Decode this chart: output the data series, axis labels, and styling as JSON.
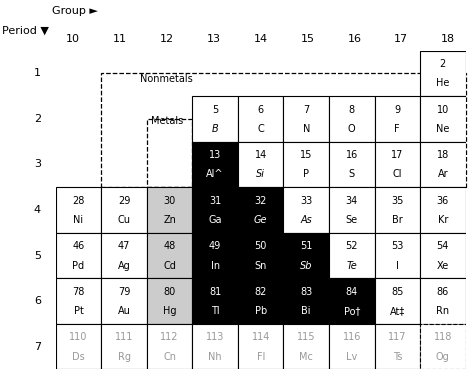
{
  "elements": [
    {
      "num": 2,
      "sym": "He",
      "period": 1,
      "group": 18,
      "bg": "white",
      "fg": "black",
      "italic": false
    },
    {
      "num": 5,
      "sym": "B",
      "period": 2,
      "group": 13,
      "bg": "white",
      "fg": "black",
      "italic": true
    },
    {
      "num": 6,
      "sym": "C",
      "period": 2,
      "group": 14,
      "bg": "white",
      "fg": "black",
      "italic": false
    },
    {
      "num": 7,
      "sym": "N",
      "period": 2,
      "group": 15,
      "bg": "white",
      "fg": "black",
      "italic": false
    },
    {
      "num": 8,
      "sym": "O",
      "period": 2,
      "group": 16,
      "bg": "white",
      "fg": "black",
      "italic": false
    },
    {
      "num": 9,
      "sym": "F",
      "period": 2,
      "group": 17,
      "bg": "white",
      "fg": "black",
      "italic": false
    },
    {
      "num": 10,
      "sym": "Ne",
      "period": 2,
      "group": 18,
      "bg": "white",
      "fg": "black",
      "italic": false
    },
    {
      "num": 13,
      "sym": "Al^",
      "period": 3,
      "group": 13,
      "bg": "black",
      "fg": "white",
      "italic": false
    },
    {
      "num": 14,
      "sym": "Si",
      "period": 3,
      "group": 14,
      "bg": "white",
      "fg": "black",
      "italic": true
    },
    {
      "num": 15,
      "sym": "P",
      "period": 3,
      "group": 15,
      "bg": "white",
      "fg": "black",
      "italic": false
    },
    {
      "num": 16,
      "sym": "S",
      "period": 3,
      "group": 16,
      "bg": "white",
      "fg": "black",
      "italic": false
    },
    {
      "num": 17,
      "sym": "Cl",
      "period": 3,
      "group": 17,
      "bg": "white",
      "fg": "black",
      "italic": false
    },
    {
      "num": 18,
      "sym": "Ar",
      "period": 3,
      "group": 18,
      "bg": "white",
      "fg": "black",
      "italic": false
    },
    {
      "num": 28,
      "sym": "Ni",
      "period": 4,
      "group": 10,
      "bg": "white",
      "fg": "black",
      "italic": false
    },
    {
      "num": 29,
      "sym": "Cu",
      "period": 4,
      "group": 11,
      "bg": "white",
      "fg": "black",
      "italic": false
    },
    {
      "num": 30,
      "sym": "Zn",
      "period": 4,
      "group": 12,
      "bg": "#cccccc",
      "fg": "black",
      "italic": false
    },
    {
      "num": 31,
      "sym": "Ga",
      "period": 4,
      "group": 13,
      "bg": "black",
      "fg": "white",
      "italic": false
    },
    {
      "num": 32,
      "sym": "Ge",
      "period": 4,
      "group": 14,
      "bg": "black",
      "fg": "white",
      "italic": true
    },
    {
      "num": 33,
      "sym": "As",
      "period": 4,
      "group": 15,
      "bg": "white",
      "fg": "black",
      "italic": true
    },
    {
      "num": 34,
      "sym": "Se",
      "period": 4,
      "group": 16,
      "bg": "white",
      "fg": "black",
      "italic": false
    },
    {
      "num": 35,
      "sym": "Br",
      "period": 4,
      "group": 17,
      "bg": "white",
      "fg": "black",
      "italic": false
    },
    {
      "num": 36,
      "sym": "Kr",
      "period": 4,
      "group": 18,
      "bg": "white",
      "fg": "black",
      "italic": false
    },
    {
      "num": 46,
      "sym": "Pd",
      "period": 5,
      "group": 10,
      "bg": "white",
      "fg": "black",
      "italic": false
    },
    {
      "num": 47,
      "sym": "Ag",
      "period": 5,
      "group": 11,
      "bg": "white",
      "fg": "black",
      "italic": false
    },
    {
      "num": 48,
      "sym": "Cd",
      "period": 5,
      "group": 12,
      "bg": "#cccccc",
      "fg": "black",
      "italic": false
    },
    {
      "num": 49,
      "sym": "In",
      "period": 5,
      "group": 13,
      "bg": "black",
      "fg": "white",
      "italic": false
    },
    {
      "num": 50,
      "sym": "Sn",
      "period": 5,
      "group": 14,
      "bg": "black",
      "fg": "white",
      "italic": false
    },
    {
      "num": 51,
      "sym": "Sb",
      "period": 5,
      "group": 15,
      "bg": "black",
      "fg": "white",
      "italic": true
    },
    {
      "num": 52,
      "sym": "Te",
      "period": 5,
      "group": 16,
      "bg": "white",
      "fg": "black",
      "italic": true
    },
    {
      "num": 53,
      "sym": "I",
      "period": 5,
      "group": 17,
      "bg": "white",
      "fg": "black",
      "italic": false
    },
    {
      "num": 54,
      "sym": "Xe",
      "period": 5,
      "group": 18,
      "bg": "white",
      "fg": "black",
      "italic": false
    },
    {
      "num": 78,
      "sym": "Pt",
      "period": 6,
      "group": 10,
      "bg": "white",
      "fg": "black",
      "italic": false
    },
    {
      "num": 79,
      "sym": "Au",
      "period": 6,
      "group": 11,
      "bg": "white",
      "fg": "black",
      "italic": false
    },
    {
      "num": 80,
      "sym": "Hg",
      "period": 6,
      "group": 12,
      "bg": "#cccccc",
      "fg": "black",
      "italic": false
    },
    {
      "num": 81,
      "sym": "Tl",
      "period": 6,
      "group": 13,
      "bg": "black",
      "fg": "white",
      "italic": false
    },
    {
      "num": 82,
      "sym": "Pb",
      "period": 6,
      "group": 14,
      "bg": "black",
      "fg": "white",
      "italic": false
    },
    {
      "num": 83,
      "sym": "Bi",
      "period": 6,
      "group": 15,
      "bg": "black",
      "fg": "white",
      "italic": false
    },
    {
      "num": 84,
      "sym": "Po†",
      "period": 6,
      "group": 16,
      "bg": "black",
      "fg": "white",
      "italic": false
    },
    {
      "num": 85,
      "sym": "At‡",
      "period": 6,
      "group": 17,
      "bg": "white",
      "fg": "black",
      "italic": false
    },
    {
      "num": 86,
      "sym": "Rn",
      "period": 6,
      "group": 18,
      "bg": "white",
      "fg": "black",
      "italic": false
    },
    {
      "num": 110,
      "sym": "Ds",
      "period": 7,
      "group": 10,
      "bg": "white",
      "fg": "#999999",
      "italic": false
    },
    {
      "num": 111,
      "sym": "Rg",
      "period": 7,
      "group": 11,
      "bg": "white",
      "fg": "#999999",
      "italic": false
    },
    {
      "num": 112,
      "sym": "Cn",
      "period": 7,
      "group": 12,
      "bg": "white",
      "fg": "#999999",
      "italic": false
    },
    {
      "num": 113,
      "sym": "Nh",
      "period": 7,
      "group": 13,
      "bg": "white",
      "fg": "#999999",
      "italic": false
    },
    {
      "num": 114,
      "sym": "Fl",
      "period": 7,
      "group": 14,
      "bg": "white",
      "fg": "#999999",
      "italic": false
    },
    {
      "num": 115,
      "sym": "Mc",
      "period": 7,
      "group": 15,
      "bg": "white",
      "fg": "#999999",
      "italic": false
    },
    {
      "num": 116,
      "sym": "Lv",
      "period": 7,
      "group": 16,
      "bg": "white",
      "fg": "#999999",
      "italic": false
    },
    {
      "num": 117,
      "sym": "Ts",
      "period": 7,
      "group": 17,
      "bg": "white",
      "fg": "#999999",
      "italic": false
    },
    {
      "num": 118,
      "sym": "Og",
      "period": 7,
      "group": 18,
      "bg": "white",
      "fg": "#999999",
      "italic": false,
      "dashed": true
    }
  ],
  "groups": [
    10,
    11,
    12,
    13,
    14,
    15,
    16,
    17,
    18
  ],
  "periods": [
    1,
    2,
    3,
    4,
    5,
    6,
    7
  ],
  "label_group": "Group ►",
  "label_period": "Period ▼",
  "label_nonmetals": "Nonmetals",
  "label_metals": "Metals",
  "fig_bg": "white"
}
